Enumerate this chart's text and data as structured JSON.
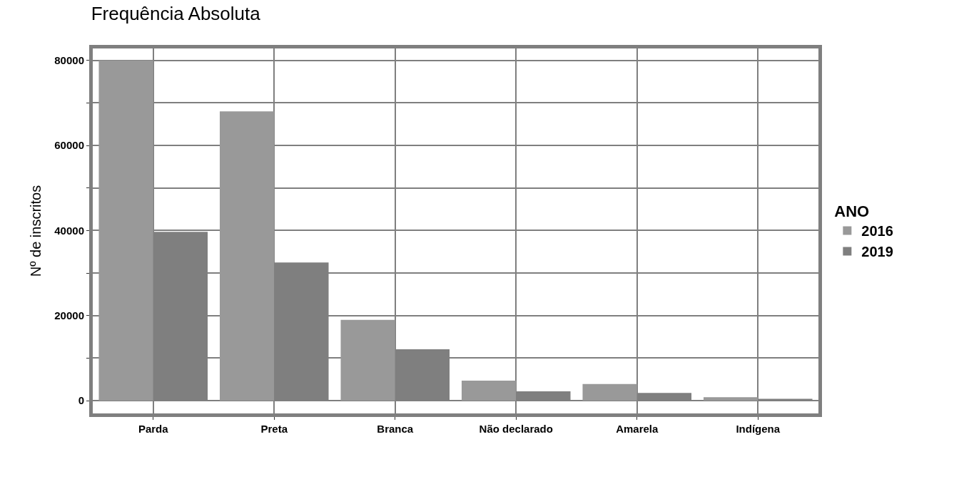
{
  "chart_data": {
    "type": "bar",
    "title": "Frequência Absoluta",
    "ylabel": "Nº de inscritos",
    "legend_title": "ANO",
    "categories": [
      "Parda",
      "Preta",
      "Branca",
      "Não declarado",
      "Amarela",
      "Indígena"
    ],
    "series": [
      {
        "name": "2016",
        "color": "#999999",
        "values": [
          80000,
          68000,
          19000,
          4700,
          3900,
          800
        ]
      },
      {
        "name": "2019",
        "color": "#7f7f7f",
        "values": [
          39700,
          32500,
          12100,
          2200,
          1800,
          450
        ]
      }
    ],
    "ylim": [
      -3000,
      82800
    ],
    "yticks": [
      0,
      {
        "value": 10000,
        "label": null
      },
      20000,
      {
        "value": 30000,
        "label": null
      },
      40000,
      {
        "value": 50000,
        "label": null
      },
      60000,
      {
        "value": 70000,
        "label": null
      },
      80000
    ],
    "grid": true,
    "legend": "right"
  }
}
